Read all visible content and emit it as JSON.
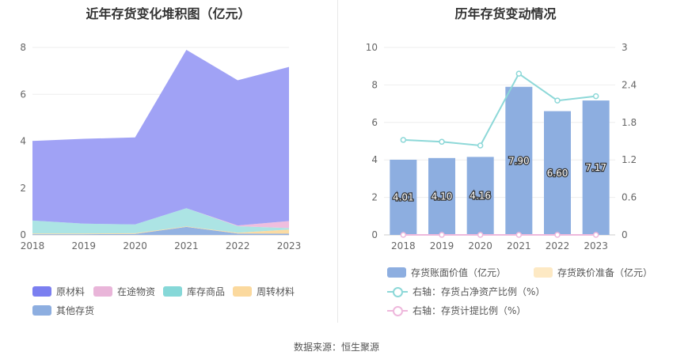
{
  "footer": {
    "source": "数据来源：恒生聚源"
  },
  "chart_data": [
    {
      "type": "area",
      "title": "近年存货变化堆积图（亿元）",
      "x": [
        "2018",
        "2019",
        "2020",
        "2021",
        "2022",
        "2023"
      ],
      "ylim": [
        0,
        8
      ],
      "yticks": [
        "0",
        "2",
        "4",
        "6",
        "8"
      ],
      "grid": true,
      "legend_position": "bottom-left",
      "series": [
        {
          "name": "其他存货",
          "color": "#8daee0",
          "values": [
            0.03,
            0.03,
            0.04,
            0.34,
            0.06,
            0.05
          ]
        },
        {
          "name": "周转材料",
          "color": "#fbd99e",
          "values": [
            0.03,
            0.03,
            0.03,
            0.02,
            0.03,
            0.18
          ]
        },
        {
          "name": "库存商品",
          "color": "#a8e3e3",
          "values": [
            0.55,
            0.42,
            0.38,
            0.78,
            0.28,
            0.06
          ]
        },
        {
          "name": "在途物资",
          "color": "#eebbdc",
          "values": [
            0.0,
            0.0,
            0.0,
            0.0,
            0.03,
            0.3
          ]
        },
        {
          "name": "原材料",
          "color": "#9b9df4",
          "values": [
            3.4,
            3.62,
            3.71,
            6.76,
            6.2,
            6.58
          ]
        }
      ],
      "legend_order": [
        "原材料",
        "在途物资",
        "库存商品",
        "周转材料",
        "其他存货"
      ],
      "legend_colors": {
        "原材料": "#7b7ff0",
        "在途物资": "#e9b5d9",
        "库存商品": "#86d8d8",
        "周转材料": "#fbd99e",
        "其他存货": "#8daee0"
      }
    },
    {
      "type": "bar",
      "title": "历年存货变动情况",
      "categories": [
        "2018",
        "2019",
        "2020",
        "2021",
        "2022",
        "2023"
      ],
      "ylim": [
        0,
        10
      ],
      "yticks": [
        "0",
        "2",
        "4",
        "6",
        "8",
        "10"
      ],
      "y2lim": [
        0,
        3
      ],
      "y2ticks": [
        "0",
        "0.6",
        "1.2",
        "1.8",
        "2.4",
        "3"
      ],
      "grid": true,
      "legend_position": "bottom",
      "bar_series": [
        {
          "name": "存货账面价值（亿元）",
          "color": "#8daee0",
          "values": [
            4.01,
            4.1,
            4.16,
            7.9,
            6.6,
            7.17
          ],
          "labels": [
            "4.01",
            "4.10",
            "4.16",
            "7.90",
            "6.60",
            "7.17"
          ]
        },
        {
          "name": "存货跌价准备（亿元）",
          "color": "#fde9c4",
          "values": [
            0,
            0,
            0,
            0,
            0,
            0
          ]
        }
      ],
      "line_series": [
        {
          "name": "右轴：存货占净资产比例（%）",
          "color": "#8dd8d8",
          "axis": "right",
          "values": [
            1.52,
            1.49,
            1.43,
            2.58,
            2.15,
            2.22
          ]
        },
        {
          "name": "右轴：存货计提比例（%）",
          "color": "#eeb8dc",
          "axis": "right",
          "values": [
            0,
            0,
            0,
            0,
            0,
            0
          ]
        }
      ]
    }
  ]
}
